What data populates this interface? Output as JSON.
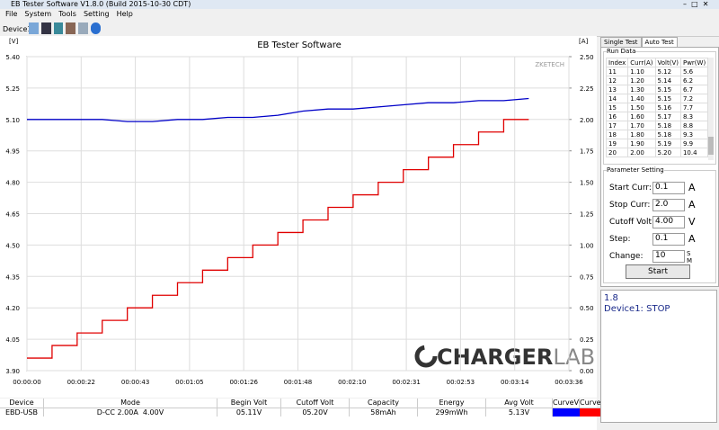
{
  "window": {
    "title": "EB Tester Software V1.8.0 (Build 2015-10-30 CDT)"
  },
  "menu": [
    "File",
    "System",
    "Tools",
    "Setting",
    "Help"
  ],
  "toolbar": {
    "device": "Device1"
  },
  "chart_data": {
    "type": "line",
    "title": "EB Tester Software",
    "watermark": "ZKETECH",
    "logo": {
      "main": "CHARGER",
      "accent": "LAB"
    },
    "y_label": "[V]",
    "y2_label": "[A]",
    "x": [
      0,
      10,
      20,
      30,
      40,
      50,
      60,
      70,
      80,
      90,
      100,
      110,
      120,
      130,
      140,
      150,
      160,
      170,
      180,
      190,
      200
    ],
    "xlim": [
      0,
      216
    ],
    "xticks": [
      {
        "value": 0,
        "label": "00:00:00"
      },
      {
        "value": 21.6,
        "label": "00:00:22"
      },
      {
        "value": 43.2,
        "label": "00:00:43"
      },
      {
        "value": 64.8,
        "label": "00:01:05"
      },
      {
        "value": 86.4,
        "label": "00:01:26"
      },
      {
        "value": 108,
        "label": "00:01:48"
      },
      {
        "value": 129.6,
        "label": "00:02:10"
      },
      {
        "value": 151.2,
        "label": "00:02:31"
      },
      {
        "value": 172.8,
        "label": "00:02:53"
      },
      {
        "value": 194.4,
        "label": "00:03:14"
      },
      {
        "value": 216,
        "label": "00:03:36"
      }
    ],
    "ylim": [
      3.9,
      5.4
    ],
    "yticks": [
      {
        "value": 3.9,
        "label": "3.90"
      },
      4.05,
      {
        "value": 4.2,
        "label": "4.20"
      },
      4.35,
      {
        "value": 4.5,
        "label": "4.50"
      },
      4.65,
      {
        "value": 4.8,
        "label": "4.80"
      },
      4.95,
      {
        "value": 5.1,
        "label": "5.10"
      },
      5.25,
      {
        "value": 5.4,
        "label": "5.40"
      }
    ],
    "y2lim": [
      0,
      2.5
    ],
    "y2ticks": [
      {
        "value": 0,
        "label": "0.00"
      },
      0.25,
      {
        "value": 0.5,
        "label": "0.50"
      },
      0.75,
      {
        "value": 1,
        "label": "1.00"
      },
      1.25,
      {
        "value": 1.5,
        "label": "1.50"
      },
      1.75,
      {
        "value": 2,
        "label": "2.00"
      },
      2.25,
      {
        "value": 2.5,
        "label": "2.50"
      }
    ],
    "grid": true,
    "series": [
      {
        "name": "CurveV",
        "color": "#0000c8",
        "step": false,
        "values": [
          5.1,
          5.1,
          5.1,
          5.1,
          5.09,
          5.09,
          5.1,
          5.1,
          5.11,
          5.11,
          5.12,
          5.14,
          5.15,
          5.15,
          5.16,
          5.17,
          5.18,
          5.18,
          5.19,
          5.19,
          5.2
        ]
      },
      {
        "name": "CurveA",
        "color": "#e00000",
        "axis": "y2",
        "step": true,
        "values": [
          0.1,
          0.2,
          0.3,
          0.4,
          0.5,
          0.6,
          0.7,
          0.8,
          0.9,
          1.0,
          1.1,
          1.2,
          1.3,
          1.4,
          1.5,
          1.6,
          1.7,
          1.8,
          1.9,
          2.0,
          2.0
        ]
      }
    ]
  },
  "results_table": {
    "headers": [
      "Device",
      "Mode",
      "Begin Volt",
      "Cutoff Volt",
      "Capacity",
      "Energy",
      "Avg Volt",
      "CurveV",
      "CurveA"
    ],
    "row": [
      "EBD-USB",
      "D-CC 2.00A  4.00V",
      "05.11V",
      "05.20V",
      "58mAh",
      "299mWh",
      "5.13V"
    ],
    "curve_colors": [
      "#0000ff",
      "#ff0000"
    ]
  },
  "tabs": [
    "Single Test",
    "Auto Test"
  ],
  "run_data": {
    "title": "Run Data",
    "headers": [
      "Index",
      "Curr(A)",
      "Volt(V)",
      "Pwr(W)"
    ],
    "rows": [
      [
        "11",
        "1.10",
        "5.12",
        "5.6"
      ],
      [
        "12",
        "1.20",
        "5.14",
        "6.2"
      ],
      [
        "13",
        "1.30",
        "5.15",
        "6.7"
      ],
      [
        "14",
        "1.40",
        "5.15",
        "7.2"
      ],
      [
        "15",
        "1.50",
        "5.16",
        "7.7"
      ],
      [
        "16",
        "1.60",
        "5.17",
        "8.3"
      ],
      [
        "17",
        "1.70",
        "5.18",
        "8.8"
      ],
      [
        "18",
        "1.80",
        "5.18",
        "9.3"
      ],
      [
        "19",
        "1.90",
        "5.19",
        "9.9"
      ],
      [
        "20",
        "2.00",
        "5.20",
        "10.4"
      ]
    ]
  },
  "parameters": {
    "title": "Parameter Setting",
    "fields": [
      {
        "label": "Start Curr:",
        "value": "0.1",
        "unit": "A"
      },
      {
        "label": "Stop Curr:",
        "value": "2.0",
        "unit": "A"
      },
      {
        "label": "Cutoff Volt",
        "value": "4.00",
        "unit": "V"
      },
      {
        "label": "Step:",
        "value": "0.1",
        "unit": "A"
      },
      {
        "label": "Change:",
        "value": "10",
        "unit": ""
      }
    ],
    "radio": [
      "S",
      "M"
    ],
    "button": "Start"
  },
  "status": {
    "version": "1.8",
    "device": "Device1: STOP"
  }
}
